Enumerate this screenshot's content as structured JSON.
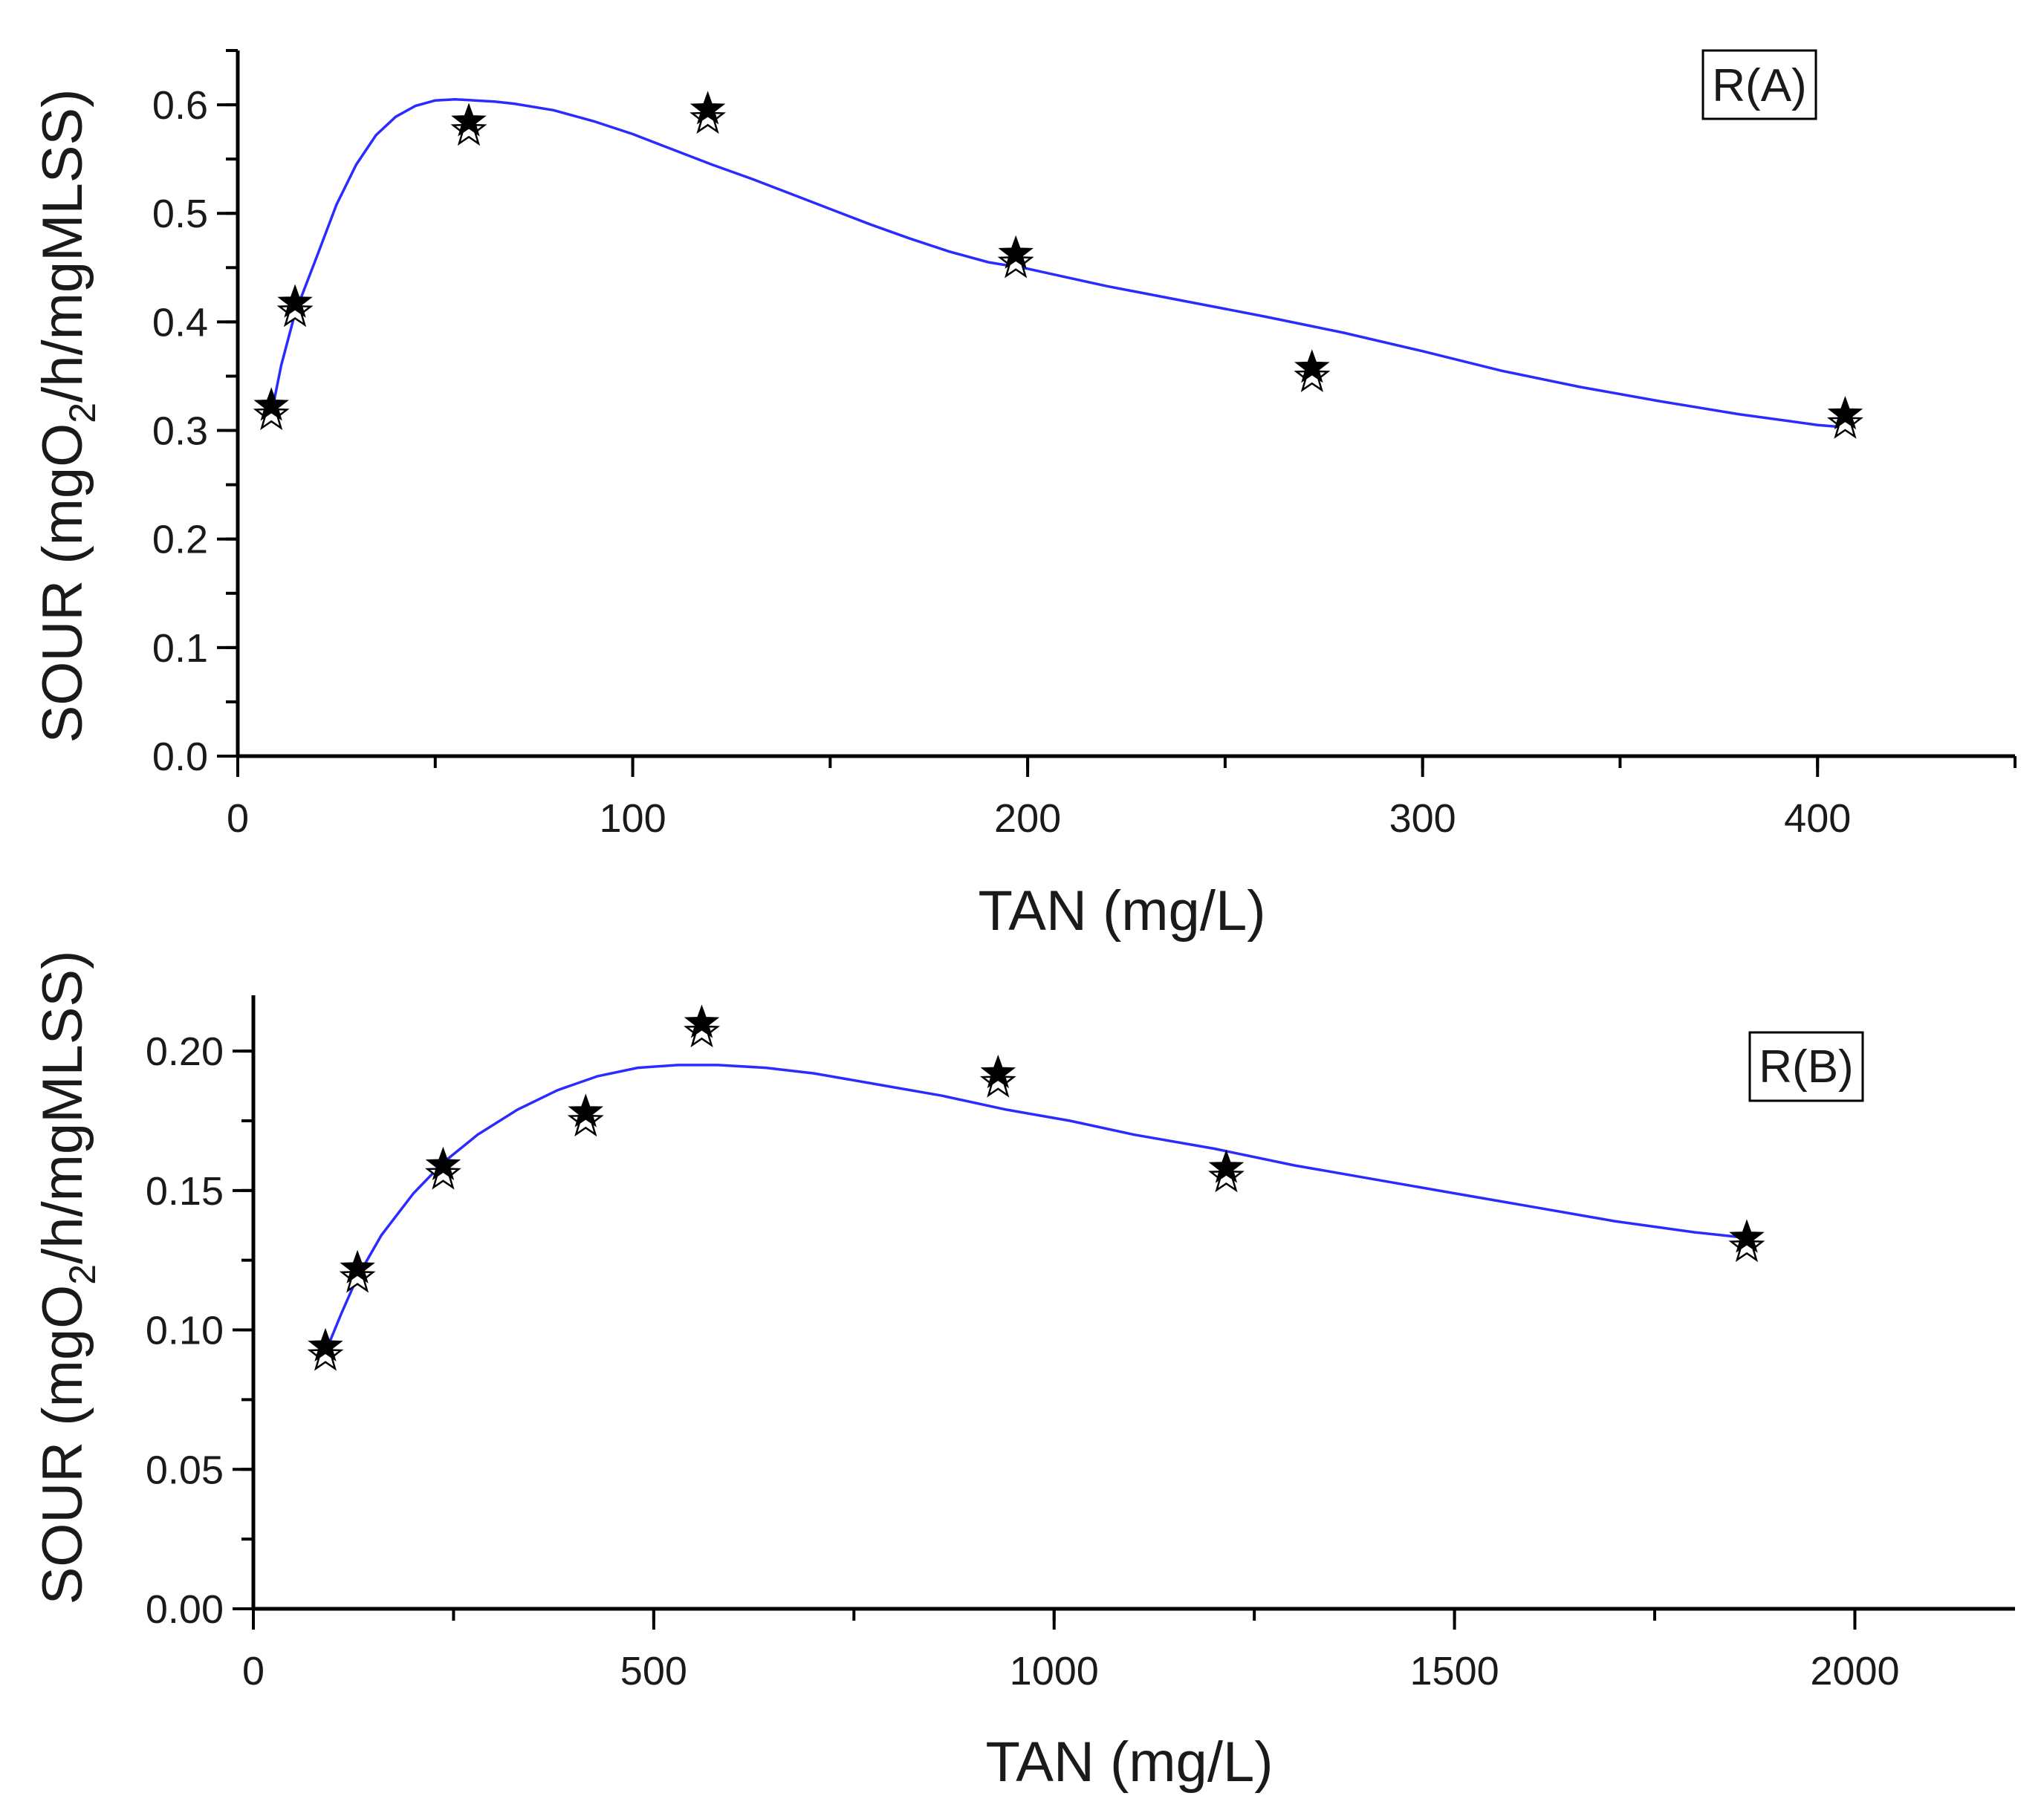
{
  "chart_data": [
    {
      "type": "scatter",
      "title": "",
      "legend_label": "R(A)",
      "legend_position": "top-right",
      "xlabel": "TAN (mg/L)",
      "ylabel_prefix": "SOUR (mgO",
      "ylabel_sub": "2",
      "ylabel_suffix": "/h/mgMLSS)",
      "xlim": [
        0,
        450
      ],
      "ylim": [
        0,
        0.65
      ],
      "x_ticks": [
        0,
        100,
        200,
        300,
        400
      ],
      "x_tick_labels": [
        "0",
        "100",
        "200",
        "300",
        "400"
      ],
      "x_minor_step": 50,
      "y_ticks": [
        0,
        0.1,
        0.2,
        0.3,
        0.4,
        0.5,
        0.6
      ],
      "y_tick_labels": [
        "0.0",
        "0.1",
        "0.2",
        "0.3",
        "0.4",
        "0.5",
        "0.6"
      ],
      "y_minor_step": 0.05,
      "grid": false,
      "series": [
        {
          "name": "R(A) measured",
          "marker": "star",
          "x": [
            8.5,
            14.5,
            58.5,
            119,
            197,
            272,
            407
          ],
          "y": [
            0.32,
            0.415,
            0.582,
            0.593,
            0.46,
            0.355,
            0.312
          ]
        },
        {
          "name": "R(A) fit",
          "line_color": "#2b2bff",
          "x": [
            8.5,
            11,
            14.5,
            20,
            25,
            30,
            35,
            40,
            45,
            50,
            55,
            60,
            65,
            70,
            80,
            90,
            100,
            110,
            120,
            130,
            140,
            150,
            160,
            170,
            180,
            190,
            200,
            220,
            240,
            260,
            280,
            300,
            320,
            340,
            360,
            380,
            400,
            407
          ],
          "y": [
            0.315,
            0.36,
            0.408,
            0.46,
            0.508,
            0.545,
            0.572,
            0.589,
            0.599,
            0.604,
            0.605,
            0.604,
            0.603,
            0.601,
            0.595,
            0.585,
            0.573,
            0.559,
            0.545,
            0.532,
            0.518,
            0.504,
            0.49,
            0.477,
            0.465,
            0.455,
            0.449,
            0.433,
            0.419,
            0.405,
            0.39,
            0.373,
            0.355,
            0.34,
            0.327,
            0.315,
            0.305,
            0.303
          ]
        }
      ]
    },
    {
      "type": "scatter",
      "title": "",
      "legend_label": "R(B)",
      "legend_position": "top-right",
      "xlabel": "TAN (mg/L)",
      "ylabel_prefix": "SOUR (mgO",
      "ylabel_sub": "2",
      "ylabel_suffix": "/h/mgMLSS)",
      "xlim": [
        0,
        2200
      ],
      "ylim": [
        0,
        0.22
      ],
      "x_ticks": [
        0,
        500,
        1000,
        1500,
        2000
      ],
      "x_tick_labels": [
        "0",
        "500",
        "1000",
        "1500",
        "2000"
      ],
      "x_minor_step": 250,
      "y_ticks": [
        0,
        0.05,
        0.1,
        0.15,
        0.2
      ],
      "y_tick_labels": [
        "0.00",
        "0.05",
        "0.10",
        "0.15",
        "0.20"
      ],
      "y_minor_step": 0.025,
      "grid": false,
      "series": [
        {
          "name": "R(B) measured",
          "marker": "star",
          "x": [
            90,
            130,
            237,
            415,
            560,
            930,
            1215,
            1865
          ],
          "y": [
            0.093,
            0.121,
            0.158,
            0.177,
            0.209,
            0.191,
            0.157,
            0.132
          ]
        },
        {
          "name": "R(B) fit",
          "line_color": "#2b2bff",
          "x": [
            90,
            110,
            130,
            160,
            200,
            237,
            280,
            330,
            380,
            430,
            480,
            530,
            580,
            640,
            700,
            780,
            860,
            940,
            1020,
            1100,
            1200,
            1300,
            1400,
            1500,
            1600,
            1700,
            1800,
            1865
          ],
          "y": [
            0.092,
            0.106,
            0.119,
            0.134,
            0.149,
            0.16,
            0.17,
            0.179,
            0.186,
            0.191,
            0.194,
            0.195,
            0.195,
            0.194,
            0.192,
            0.188,
            0.184,
            0.179,
            0.175,
            0.17,
            0.165,
            0.159,
            0.154,
            0.149,
            0.144,
            0.139,
            0.135,
            0.133
          ]
        }
      ]
    }
  ]
}
